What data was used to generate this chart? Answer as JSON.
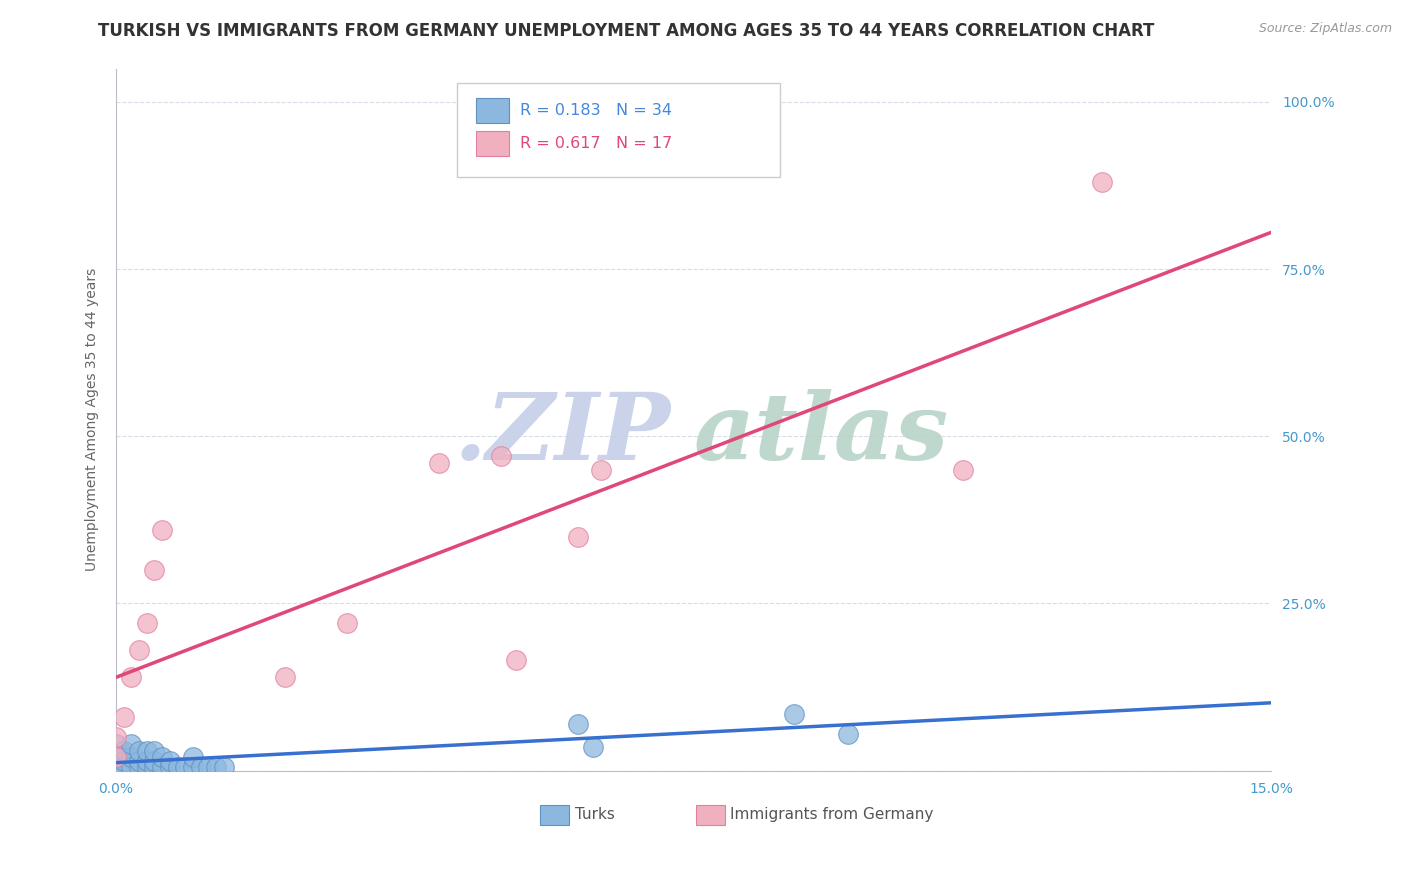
{
  "title": "TURKISH VS IMMIGRANTS FROM GERMANY UNEMPLOYMENT AMONG AGES 35 TO 44 YEARS CORRELATION CHART",
  "source_text": "Source: ZipAtlas.com",
  "ylabel": "Unemployment Among Ages 35 to 44 years",
  "xlim": [
    0.0,
    0.15
  ],
  "ylim": [
    0.0,
    1.05
  ],
  "y_ticks": [
    0.0,
    0.25,
    0.5,
    0.75,
    1.0
  ],
  "y_tick_labels": [
    "",
    "25.0%",
    "50.0%",
    "75.0%",
    "100.0%"
  ],
  "background_color": "#ffffff",
  "grid_color": "#d8dce8",
  "watermark_zip": ".ZIP",
  "watermark_atlas": "atlas",
  "watermark_zip_color": "#c5cfe8",
  "watermark_atlas_color": "#b8d4c8",
  "legend_R_turks": "0.183",
  "legend_N_turks": "34",
  "legend_R_germany": "0.617",
  "legend_N_germany": "17",
  "turks_color": "#8cb8e0",
  "turks_edge_color": "#6090c0",
  "germany_color": "#f0b0c0",
  "germany_edge_color": "#e080a0",
  "trendline_turks_color": "#3870d0",
  "trendline_germany_color": "#e04878",
  "title_fontsize": 12,
  "axis_label_fontsize": 10,
  "tick_fontsize": 10,
  "turks_points_x": [
    0.0,
    0.0,
    0.0,
    0.001,
    0.001,
    0.001,
    0.002,
    0.002,
    0.002,
    0.003,
    0.003,
    0.003,
    0.004,
    0.004,
    0.004,
    0.005,
    0.005,
    0.005,
    0.006,
    0.006,
    0.007,
    0.007,
    0.008,
    0.009,
    0.01,
    0.01,
    0.011,
    0.012,
    0.013,
    0.014,
    0.06,
    0.062,
    0.088,
    0.095
  ],
  "turks_points_y": [
    0.01,
    0.02,
    0.04,
    0.005,
    0.015,
    0.03,
    0.005,
    0.02,
    0.04,
    0.005,
    0.015,
    0.03,
    0.005,
    0.015,
    0.03,
    0.005,
    0.015,
    0.03,
    0.005,
    0.02,
    0.005,
    0.015,
    0.005,
    0.005,
    0.005,
    0.02,
    0.005,
    0.005,
    0.005,
    0.005,
    0.07,
    0.035,
    0.085,
    0.055
  ],
  "germany_points_x": [
    0.0,
    0.0,
    0.001,
    0.002,
    0.003,
    0.004,
    0.005,
    0.006,
    0.022,
    0.03,
    0.042,
    0.05,
    0.052,
    0.06,
    0.063,
    0.11,
    0.128
  ],
  "germany_points_y": [
    0.02,
    0.05,
    0.08,
    0.14,
    0.18,
    0.22,
    0.3,
    0.36,
    0.14,
    0.22,
    0.46,
    0.47,
    0.165,
    0.35,
    0.45,
    0.45,
    0.88
  ]
}
